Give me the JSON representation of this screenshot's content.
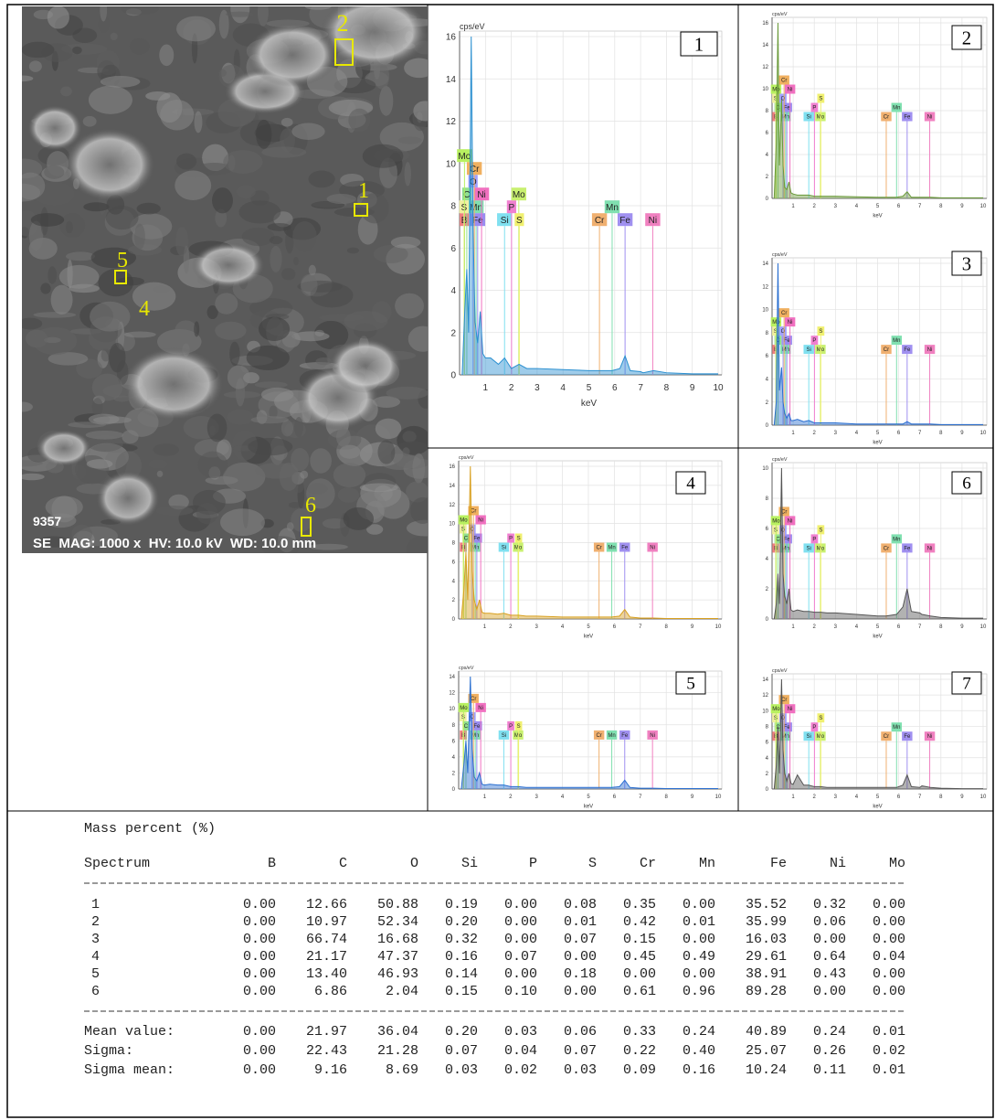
{
  "sem_image": {
    "markers": [
      "2",
      "1",
      "5",
      "4",
      "6"
    ],
    "number": "9357",
    "info": "SE  MAG: 1000 x  HV: 10.0 kV  WD: 10.0 mm"
  },
  "element_lines": [
    {
      "label": "B",
      "energy": 0.18,
      "color": "#f08080"
    },
    {
      "label": "Mn",
      "energy": 0.64,
      "color": "#7fe0b0"
    },
    {
      "label": "C",
      "energy": 0.28,
      "color": "#90e090"
    },
    {
      "label": "Fe",
      "energy": 0.7,
      "color": "#9a8cf0"
    },
    {
      "label": "S",
      "energy": 0.17,
      "color": "#f0f0a0"
    },
    {
      "label": "O",
      "energy": 0.52,
      "color": "#a0a0ff"
    },
    {
      "label": "Ni",
      "energy": 0.85,
      "color": "#f070c0"
    },
    {
      "label": "Cr",
      "energy": 0.57,
      "color": "#f0b060"
    },
    {
      "label": "Mo",
      "energy": 0.19,
      "color": "#b8f060"
    },
    {
      "label": "Si",
      "energy": 1.74,
      "color": "#80e0f0"
    },
    {
      "label": "P",
      "energy": 2.01,
      "color": "#f080d0"
    },
    {
      "label": "Mo",
      "energy": 2.29,
      "color": "#c8f070"
    },
    {
      "label": "S",
      "energy": 2.31,
      "color": "#f0f070"
    },
    {
      "label": "Cr",
      "energy": 5.41,
      "color": "#f0b070"
    },
    {
      "label": "Mn",
      "energy": 5.9,
      "color": "#80e0b0"
    },
    {
      "label": "Fe",
      "energy": 6.4,
      "color": "#a090f0"
    },
    {
      "label": "Ni",
      "energy": 7.47,
      "color": "#f080c0"
    }
  ],
  "chart_data": [
    {
      "type": "line",
      "label": "1",
      "y_label": "cps/eV",
      "x_label": "keV",
      "color": "#2a8fd0",
      "grid": true,
      "x": [
        0.1,
        0.2,
        0.28,
        0.35,
        0.45,
        0.52,
        0.6,
        0.7,
        0.8,
        0.9,
        1.0,
        1.2,
        1.5,
        1.74,
        2.0,
        2.3,
        2.6,
        3.0,
        4.0,
        5.0,
        5.4,
        5.9,
        6.2,
        6.4,
        6.6,
        7.0,
        7.1,
        7.5,
        8.0,
        9.0,
        10.0
      ],
      "values": [
        0,
        3,
        5,
        2,
        16,
        7,
        2.5,
        1.5,
        3,
        1,
        0.8,
        0.8,
        0.5,
        0.8,
        0.3,
        0.5,
        0.3,
        0.3,
        0.25,
        0.2,
        0.2,
        0.2,
        0.3,
        0.9,
        0.2,
        0.15,
        0.1,
        0.2,
        0.1,
        0.05,
        0.05
      ],
      "xlim": [
        0,
        10
      ],
      "ylim": [
        0,
        16
      ],
      "xticks": [
        1,
        2,
        3,
        4,
        5,
        6,
        7,
        8,
        9,
        10
      ],
      "yticks": [
        0,
        2,
        4,
        6,
        8,
        10,
        12,
        14,
        16
      ]
    },
    {
      "type": "line",
      "label": "2",
      "y_label": "cps/eV",
      "x_label": "keV",
      "color": "#6a9a3a",
      "grid": true,
      "x": [
        0.1,
        0.2,
        0.28,
        0.35,
        0.45,
        0.52,
        0.6,
        0.7,
        0.8,
        0.9,
        1.0,
        1.2,
        1.5,
        1.74,
        2.0,
        2.3,
        2.6,
        3.0,
        4.0,
        5.0,
        5.4,
        5.9,
        6.2,
        6.4,
        6.6,
        7.0,
        7.1,
        7.5,
        8.0,
        9.0,
        10.0
      ],
      "values": [
        0,
        5,
        16,
        3,
        9,
        3,
        1,
        0.8,
        1.5,
        0.5,
        0.4,
        0.3,
        0.3,
        0.3,
        0.2,
        0.2,
        0.2,
        0.2,
        0.15,
        0.1,
        0.1,
        0.1,
        0.2,
        0.6,
        0.1,
        0.1,
        0.1,
        0.1,
        0.05,
        0.05,
        0.05
      ],
      "xlim": [
        0,
        10
      ],
      "ylim": [
        0,
        16
      ],
      "xticks": [
        1,
        2,
        3,
        4,
        5,
        6,
        7,
        8,
        9,
        10
      ],
      "yticks": [
        0,
        2,
        4,
        6,
        8,
        10,
        12,
        14,
        16
      ]
    },
    {
      "type": "line",
      "label": "3",
      "y_label": "cps/eV",
      "x_label": "keV",
      "color": "#2a6fd0",
      "grid": true,
      "x": [
        0.1,
        0.2,
        0.28,
        0.35,
        0.45,
        0.52,
        0.6,
        0.7,
        0.8,
        0.9,
        1.0,
        1.2,
        1.5,
        1.74,
        2.0,
        2.3,
        2.6,
        3.0,
        4.0,
        5.0,
        5.4,
        5.9,
        6.2,
        6.4,
        6.6,
        7.0,
        7.1,
        7.5,
        8.0,
        9.0,
        10.0
      ],
      "values": [
        0,
        2,
        14,
        3,
        5,
        2,
        1,
        0.6,
        1,
        0.4,
        0.4,
        0.5,
        0.3,
        0.4,
        0.2,
        0.2,
        0.2,
        0.2,
        0.1,
        0.1,
        0.1,
        0.1,
        0.1,
        0.3,
        0.1,
        0.1,
        0.1,
        0.1,
        0.05,
        0.05,
        0.05
      ],
      "xlim": [
        0,
        10
      ],
      "ylim": [
        0,
        14
      ],
      "xticks": [
        1,
        2,
        3,
        4,
        5,
        6,
        7,
        8,
        9,
        10
      ],
      "yticks": [
        0,
        2,
        4,
        6,
        8,
        10,
        12,
        14
      ]
    },
    {
      "type": "line",
      "label": "4",
      "y_label": "cps/eV",
      "x_label": "keV",
      "color": "#d8a020",
      "grid": true,
      "x": [
        0.1,
        0.2,
        0.28,
        0.35,
        0.45,
        0.52,
        0.6,
        0.7,
        0.8,
        0.9,
        1.0,
        1.2,
        1.5,
        1.74,
        2.0,
        2.3,
        2.6,
        3.0,
        4.0,
        5.0,
        5.4,
        5.9,
        6.2,
        6.4,
        6.6,
        7.0,
        7.1,
        7.5,
        8.0,
        9.0,
        10.0
      ],
      "values": [
        0,
        3,
        7,
        2,
        16,
        5,
        2,
        1,
        2,
        0.7,
        0.6,
        0.6,
        0.5,
        0.6,
        0.4,
        0.4,
        0.3,
        0.3,
        0.2,
        0.2,
        0.2,
        0.2,
        0.3,
        1,
        0.2,
        0.1,
        0.1,
        0.1,
        0.05,
        0.05,
        0.05
      ],
      "xlim": [
        0,
        10
      ],
      "ylim": [
        0,
        16
      ],
      "xticks": [
        1,
        2,
        3,
        4,
        5,
        6,
        7,
        8,
        9,
        10
      ],
      "yticks": [
        0,
        2,
        4,
        6,
        8,
        10,
        12,
        14,
        16
      ]
    },
    {
      "type": "line",
      "label": "5",
      "y_label": "cps/eV",
      "x_label": "keV",
      "color": "#2a6fd0",
      "grid": true,
      "x": [
        0.1,
        0.2,
        0.28,
        0.35,
        0.45,
        0.52,
        0.6,
        0.7,
        0.8,
        0.9,
        1.0,
        1.2,
        1.5,
        1.74,
        2.0,
        2.3,
        2.6,
        3.0,
        4.0,
        5.0,
        5.4,
        5.9,
        6.2,
        6.4,
        6.6,
        7.0,
        7.1,
        7.5,
        8.0,
        9.0,
        10.0
      ],
      "values": [
        0,
        3,
        6,
        2,
        14,
        5,
        1.5,
        1,
        2,
        0.6,
        0.5,
        0.6,
        0.5,
        0.5,
        0.3,
        0.3,
        0.2,
        0.2,
        0.2,
        0.2,
        0.2,
        0.2,
        0.3,
        1.1,
        0.2,
        0.1,
        0.1,
        0.1,
        0.05,
        0.05,
        0.05
      ],
      "xlim": [
        0,
        10
      ],
      "ylim": [
        0,
        14
      ],
      "xticks": [
        1,
        2,
        3,
        4,
        5,
        6,
        7,
        8,
        9,
        10
      ],
      "yticks": [
        0,
        2,
        4,
        6,
        8,
        10,
        12,
        14
      ]
    },
    {
      "type": "line",
      "label": "6",
      "y_label": "cps/eV",
      "x_label": "keV",
      "color": "#555555",
      "grid": true,
      "x": [
        0.1,
        0.2,
        0.28,
        0.35,
        0.45,
        0.52,
        0.6,
        0.7,
        0.8,
        0.9,
        1.0,
        1.2,
        1.5,
        1.74,
        2.0,
        2.3,
        2.6,
        3.0,
        4.0,
        5.0,
        5.4,
        5.9,
        6.2,
        6.4,
        6.6,
        7.0,
        7.1,
        7.5,
        8.0,
        9.0,
        10.0
      ],
      "values": [
        0,
        1,
        3,
        1,
        10,
        3,
        1.5,
        1,
        2,
        0.6,
        0.5,
        0.6,
        0.5,
        0.5,
        0.45,
        0.45,
        0.4,
        0.4,
        0.3,
        0.2,
        0.2,
        0.3,
        0.8,
        2,
        0.5,
        0.4,
        0.3,
        0.2,
        0.1,
        0.05,
        0.05
      ],
      "xlim": [
        0,
        10
      ],
      "ylim": [
        0,
        10
      ],
      "xticks": [
        1,
        2,
        3,
        4,
        5,
        6,
        7,
        8,
        9,
        10
      ],
      "yticks": [
        0,
        2,
        4,
        6,
        8,
        10
      ]
    },
    {
      "type": "line",
      "label": "7",
      "y_label": "cps/eV",
      "x_label": "keV",
      "color": "#555555",
      "grid": true,
      "x": [
        0.1,
        0.2,
        0.28,
        0.35,
        0.45,
        0.52,
        0.6,
        0.7,
        0.8,
        0.9,
        1.0,
        1.2,
        1.5,
        1.74,
        2.0,
        2.3,
        2.6,
        3.0,
        4.0,
        5.0,
        5.4,
        5.9,
        6.2,
        6.4,
        6.6,
        7.0,
        7.1,
        7.5,
        8.0,
        9.0,
        10.0
      ],
      "values": [
        0,
        3,
        8,
        2,
        14,
        5,
        2,
        1,
        2,
        0.7,
        0.6,
        1.8,
        0.5,
        0.5,
        0.3,
        0.3,
        0.2,
        0.2,
        0.2,
        0.2,
        0.2,
        0.2,
        0.5,
        1.8,
        0.3,
        0.2,
        0.4,
        0.2,
        0.1,
        0.05,
        0.05
      ],
      "xlim": [
        0,
        10
      ],
      "ylim": [
        0,
        14
      ],
      "xticks": [
        1,
        2,
        3,
        4,
        5,
        6,
        7,
        8,
        9,
        10
      ],
      "yticks": [
        0,
        2,
        4,
        6,
        8,
        10,
        12,
        14
      ]
    }
  ],
  "table": {
    "title": "Mass percent (%)",
    "columns": [
      "Spectrum",
      "B",
      "C",
      "O",
      "Si",
      "P",
      "S",
      "Cr",
      "Mn",
      "Fe",
      "Ni",
      "Mo"
    ],
    "rows": [
      [
        "1",
        "0.00",
        "12.66",
        "50.88",
        "0.19",
        "0.00",
        "0.08",
        "0.35",
        "0.00",
        "35.52",
        "0.32",
        "0.00"
      ],
      [
        "2",
        "0.00",
        "10.97",
        "52.34",
        "0.20",
        "0.00",
        "0.01",
        "0.42",
        "0.01",
        "35.99",
        "0.06",
        "0.00"
      ],
      [
        "3",
        "0.00",
        "66.74",
        "16.68",
        "0.32",
        "0.00",
        "0.07",
        "0.15",
        "0.00",
        "16.03",
        "0.00",
        "0.00"
      ],
      [
        "4",
        "0.00",
        "21.17",
        "47.37",
        "0.16",
        "0.07",
        "0.00",
        "0.45",
        "0.49",
        "29.61",
        "0.64",
        "0.04"
      ],
      [
        "5",
        "0.00",
        "13.40",
        "46.93",
        "0.14",
        "0.00",
        "0.18",
        "0.00",
        "0.00",
        "38.91",
        "0.43",
        "0.00"
      ],
      [
        "6",
        "0.00",
        "6.86",
        "2.04",
        "0.15",
        "0.10",
        "0.00",
        "0.61",
        "0.96",
        "89.28",
        "0.00",
        "0.00"
      ]
    ],
    "summary": [
      [
        "Mean value:",
        "0.00",
        "21.97",
        "36.04",
        "0.20",
        "0.03",
        "0.06",
        "0.33",
        "0.24",
        "40.89",
        "0.24",
        "0.01"
      ],
      [
        "Sigma:",
        "0.00",
        "22.43",
        "21.28",
        "0.07",
        "0.04",
        "0.07",
        "0.22",
        "0.40",
        "25.07",
        "0.26",
        "0.02"
      ],
      [
        "Sigma mean:",
        "0.00",
        "9.16",
        "8.69",
        "0.03",
        "0.02",
        "0.03",
        "0.09",
        "0.16",
        "10.24",
        "0.11",
        "0.01"
      ]
    ]
  }
}
